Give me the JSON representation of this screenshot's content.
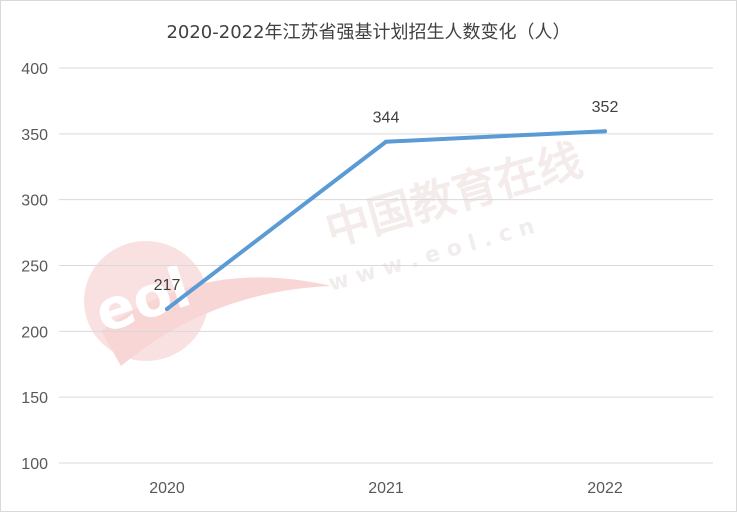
{
  "chart_data": {
    "type": "line",
    "title": "2020-2022年江苏省强基计划招生人数变化（人）",
    "categories": [
      "2020",
      "2021",
      "2022"
    ],
    "series": [
      {
        "values": [
          217,
          344,
          352
        ],
        "color": "#5b9bd5"
      }
    ],
    "ylim": [
      100,
      400
    ],
    "yticks": [
      100,
      150,
      200,
      250,
      300,
      350,
      400
    ],
    "grid": true,
    "data_labels": true,
    "xlabel": "",
    "ylabel": ""
  },
  "watermark": {
    "logo_text": "eol",
    "cn_text": "中国教育在线",
    "url_text": "w w w . e o l . c n"
  }
}
